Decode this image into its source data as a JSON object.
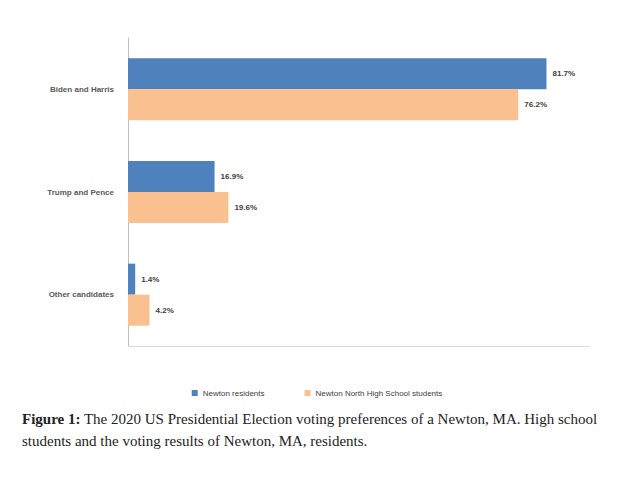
{
  "chart_data": {
    "type": "bar",
    "orientation": "horizontal",
    "categories": [
      "Biden and Harris",
      "Trump and Pence",
      "Other candidates"
    ],
    "series": [
      {
        "name": "Newton residents",
        "color": "#4f81bd",
        "values": [
          81.7,
          16.9,
          1.4
        ],
        "value_labels": [
          "81.7%",
          "16.9%",
          "1.4%"
        ]
      },
      {
        "name": "Newton North High School students",
        "color": "#fac090",
        "values": [
          76.2,
          19.6,
          4.2
        ],
        "value_labels": [
          "76.2%",
          "19.6%",
          "4.2%"
        ]
      }
    ],
    "xlim": [
      0,
      90
    ],
    "data_labels": true,
    "tick_labels": "y",
    "grid": false,
    "legend": "bottom",
    "caption": {
      "label": "Figure 1:",
      "text": "The 2020 US Presidential Election voting preferences of a Newton, MA. High school students and the voting results of Newton, MA, residents."
    }
  }
}
